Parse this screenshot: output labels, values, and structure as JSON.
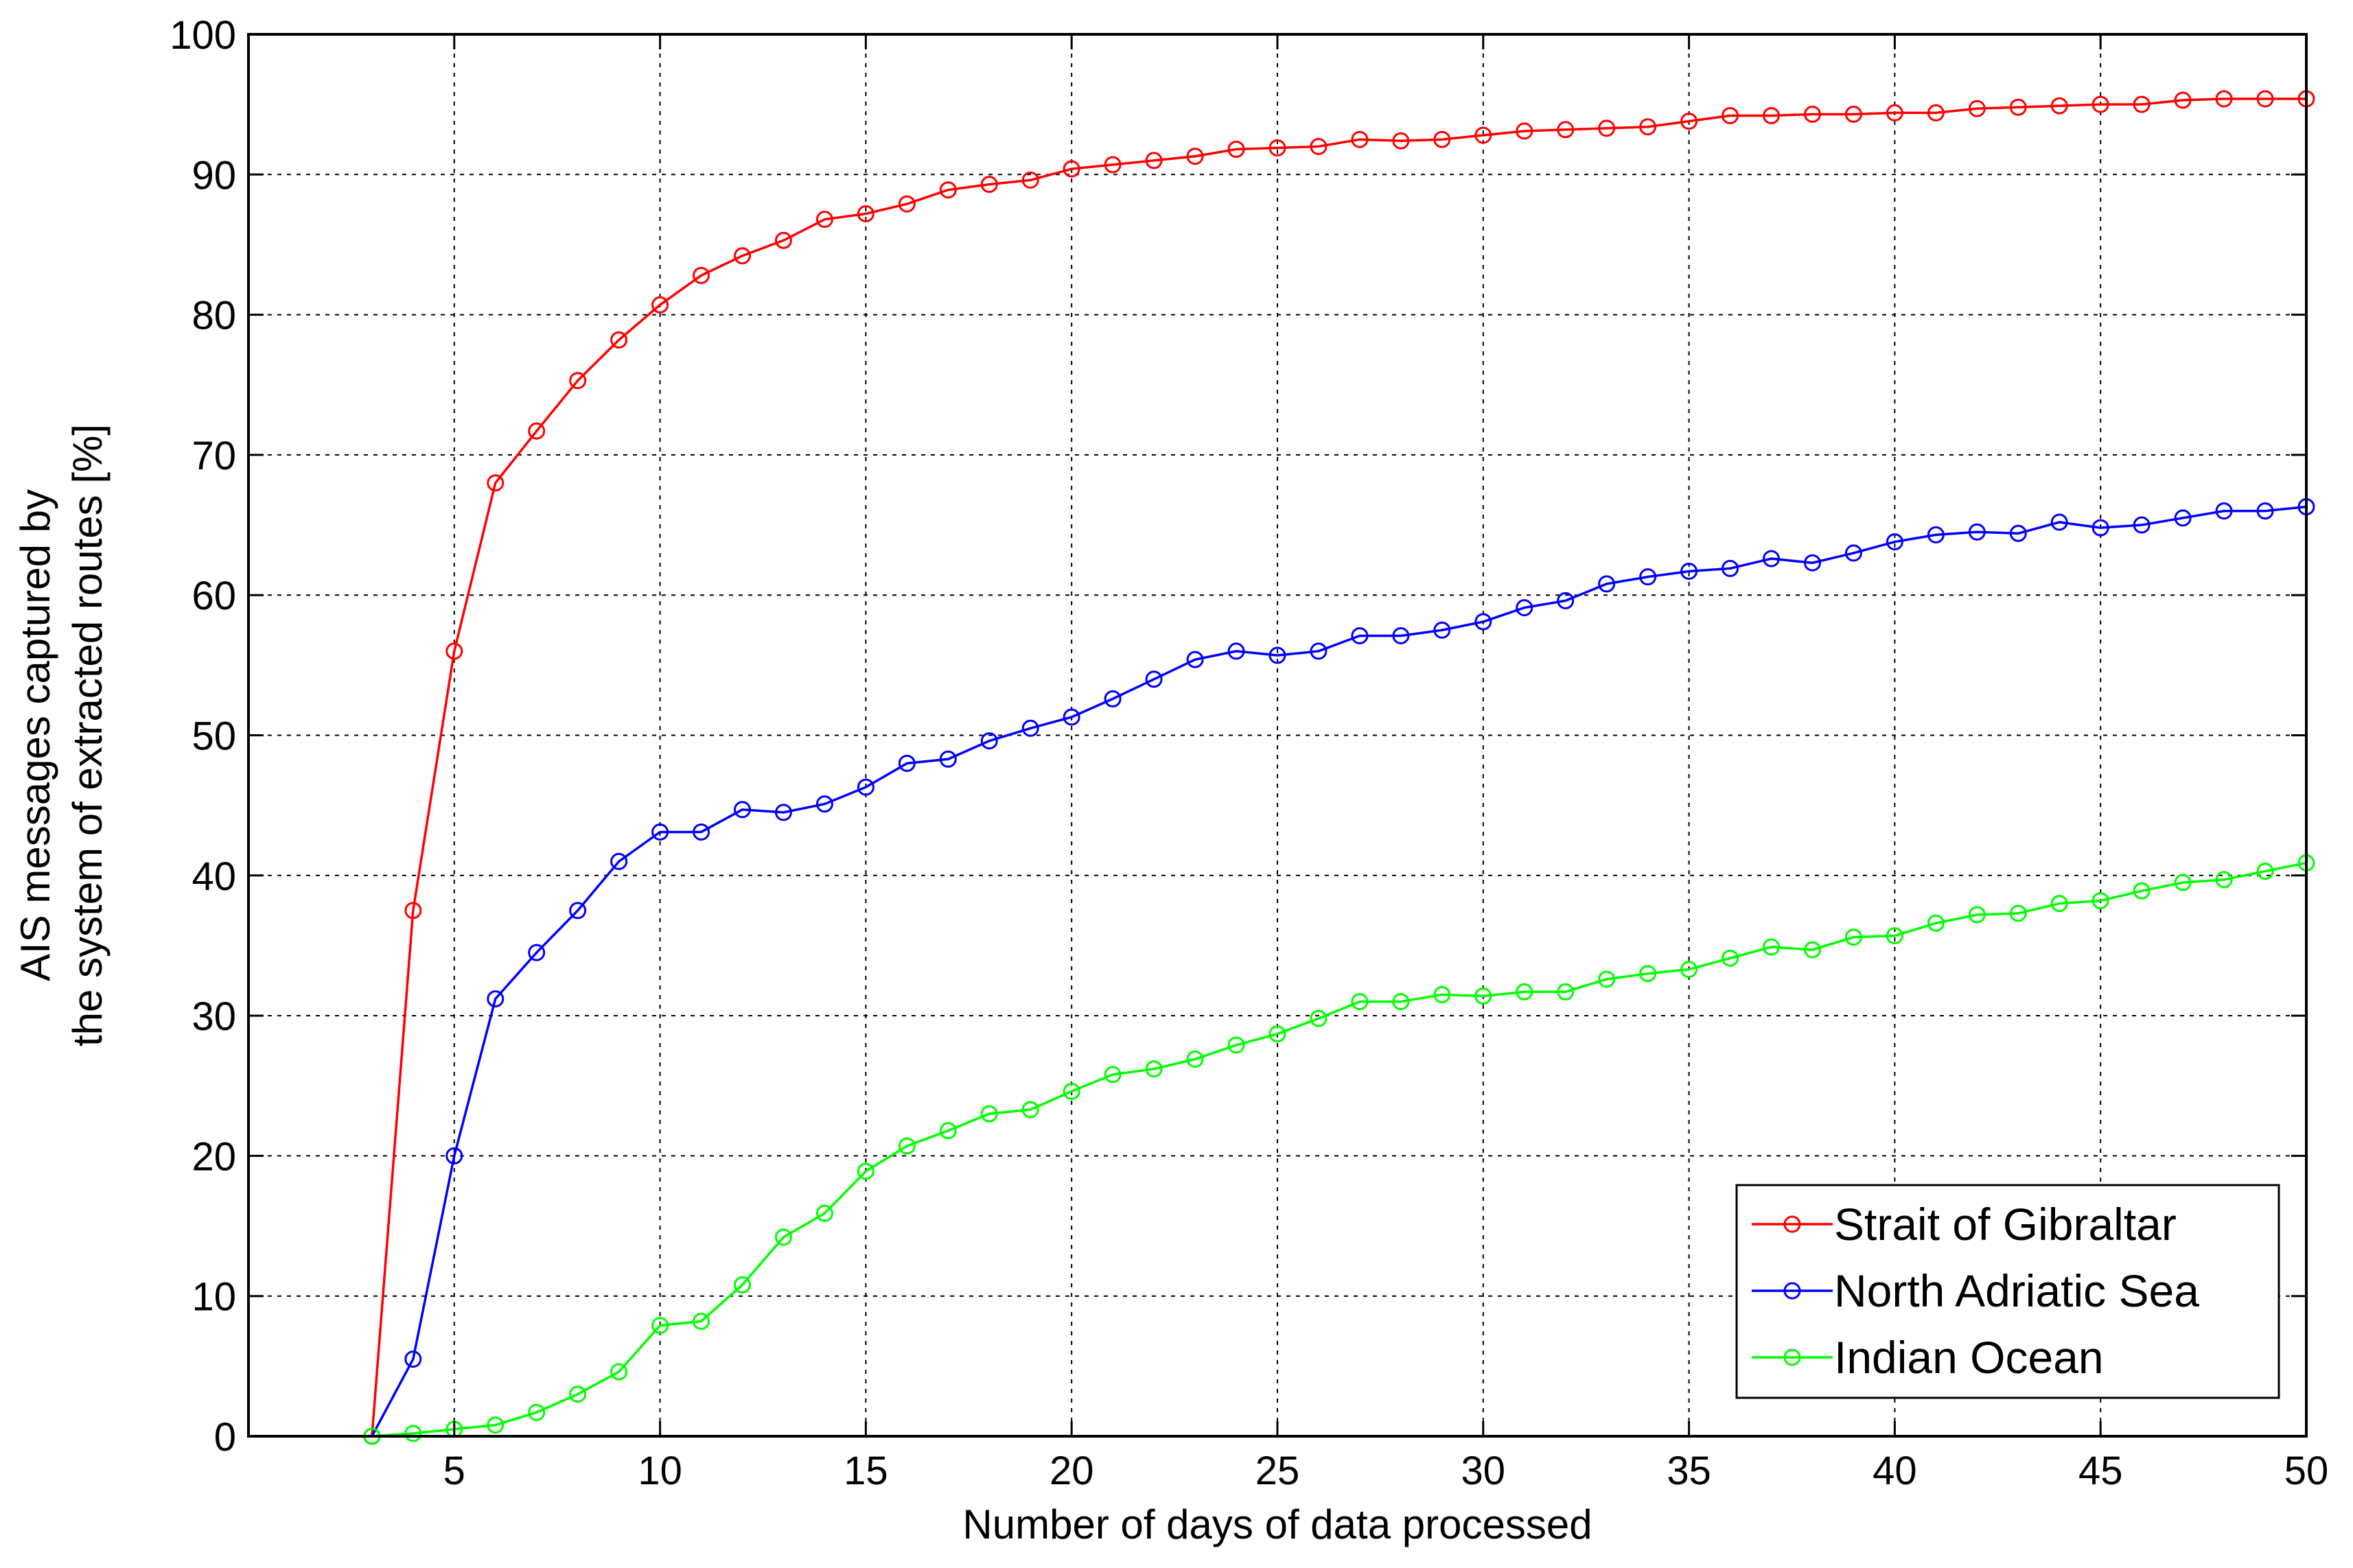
{
  "chart_data": {
    "type": "line",
    "title": "",
    "xlabel": "Number of days of data processed",
    "ylabel_lines": [
      "AIS messages captured by",
      "the system of extracted routes [%]"
    ],
    "xlim": [
      0,
      50
    ],
    "ylim": [
      0,
      100
    ],
    "x_ticks": [
      5,
      10,
      15,
      20,
      25,
      30,
      35,
      40,
      45,
      50
    ],
    "y_ticks": [
      0,
      10,
      20,
      30,
      40,
      50,
      60,
      70,
      80,
      90,
      100
    ],
    "grid": true,
    "legend_position": "bottom-right",
    "marker": "circle",
    "x": [
      3,
      4,
      5,
      6,
      7,
      8,
      9,
      10,
      11,
      12,
      13,
      14,
      15,
      16,
      17,
      18,
      19,
      20,
      21,
      22,
      23,
      24,
      25,
      26,
      27,
      28,
      29,
      30,
      31,
      32,
      33,
      34,
      35,
      36,
      37,
      38,
      39,
      40,
      41,
      42,
      43,
      44,
      45,
      46,
      47,
      48,
      49,
      50
    ],
    "series": [
      {
        "name": "Strait of Gibraltar",
        "color": "#ff0000",
        "values": [
          0,
          37.5,
          56,
          68,
          71.7,
          75.3,
          78.2,
          80.7,
          82.8,
          84.2,
          85.3,
          86.8,
          87.2,
          87.9,
          88.9,
          89.3,
          89.6,
          90.4,
          90.7,
          91.0,
          91.3,
          91.8,
          91.9,
          92.0,
          92.5,
          92.4,
          92.5,
          92.8,
          93.1,
          93.2,
          93.3,
          93.4,
          93.8,
          94.2,
          94.2,
          94.3,
          94.3,
          94.4,
          94.4,
          94.7,
          94.8,
          94.9,
          95.0,
          95.0,
          95.3,
          95.4,
          95.4,
          95.4
        ]
      },
      {
        "name": "North Adriatic Sea",
        "color": "#0000ff",
        "values": [
          0,
          5.5,
          20,
          31.2,
          34.5,
          37.5,
          41,
          43.1,
          43.1,
          44.7,
          44.5,
          45.1,
          46.3,
          48,
          48.3,
          49.6,
          50.5,
          51.3,
          52.6,
          54,
          55.4,
          56.0,
          55.7,
          56.0,
          57.1,
          57.1,
          57.5,
          58.1,
          59.1,
          59.6,
          60.8,
          61.3,
          61.7,
          61.9,
          62.6,
          62.3,
          63.0,
          63.8,
          64.3,
          64.5,
          64.4,
          65.2,
          64.8,
          65.0,
          65.5,
          66.0,
          66.0,
          66.3
        ]
      },
      {
        "name": "Indian Ocean",
        "color": "#00ff00",
        "values": [
          0,
          0.2,
          0.5,
          0.8,
          1.7,
          3.0,
          4.6,
          7.9,
          8.2,
          10.8,
          14.2,
          15.9,
          18.9,
          20.7,
          21.8,
          23.0,
          23.3,
          24.6,
          25.8,
          26.2,
          26.9,
          27.9,
          28.7,
          29.8,
          31.0,
          31.0,
          31.5,
          31.4,
          31.7,
          31.7,
          32.6,
          33.0,
          33.3,
          34.1,
          34.9,
          34.7,
          35.6,
          35.7,
          36.6,
          37.2,
          37.3,
          38.0,
          38.2,
          38.9,
          39.5,
          39.7,
          40.3,
          40.9
        ]
      }
    ]
  }
}
